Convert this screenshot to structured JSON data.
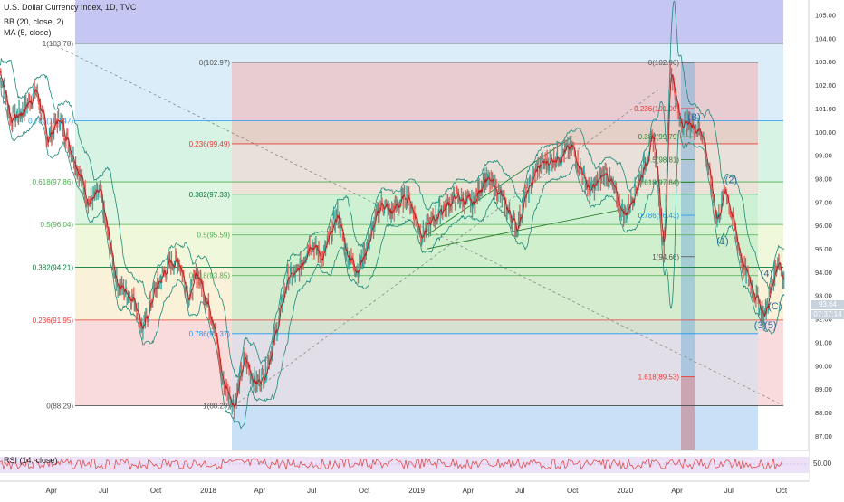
{
  "header": {
    "title": "U.S. Dollar Currency Index, 1D, TVC",
    "indicator_bb": "BB (20, close, 2)",
    "indicator_ma": "MA (5, close)"
  },
  "rsi_panel": {
    "label": "RSI (14, close)",
    "tick": "50.00"
  },
  "price_tags": {
    "last": "93.64",
    "timer": "07:37:14"
  },
  "colors": {
    "price_up": "#26a69a",
    "price_down": "#ef5350",
    "bb": "#1e8a7a",
    "ma": "#b71c1c",
    "rsi": "#e53935",
    "fib_red": "#e53935",
    "fib_blue": "#2196f3",
    "fib_green": "#4caf50",
    "fib_line": "#555555"
  },
  "chart_data": {
    "type": "line",
    "title": "U.S. Dollar Currency Index, 1D, TVC",
    "y_axis": {
      "range": [
        87.0,
        105.0
      ],
      "ticks": [
        "105.00",
        "104.00",
        "103.00",
        "102.00",
        "101.00",
        "100.00",
        "99.00",
        "98.00",
        "97.00",
        "96.00",
        "95.00",
        "94.00",
        "93.00",
        "92.00",
        "91.00",
        "90.00",
        "89.00",
        "88.00",
        "87.00"
      ]
    },
    "x_axis": {
      "ticks": [
        "Apr",
        "Jul",
        "Oct",
        "2018",
        "Apr",
        "Jul",
        "Oct",
        "2019",
        "Apr",
        "Jul",
        "Oct",
        "2020",
        "Apr",
        "Jul",
        "Oct"
      ]
    },
    "price_series": {
      "name": "U.S. Dollar Currency Index",
      "anchors": [
        [
          "2017-01-01",
          102.6
        ],
        [
          "2017-01-20",
          100.5
        ],
        [
          "2017-02-10",
          100.9
        ],
        [
          "2017-03-05",
          101.8
        ],
        [
          "2017-03-25",
          99.7
        ],
        [
          "2017-04-15",
          100.6
        ],
        [
          "2017-05-10",
          98.9
        ],
        [
          "2017-06-05",
          97.0
        ],
        [
          "2017-06-25",
          97.4
        ],
        [
          "2017-07-25",
          93.5
        ],
        [
          "2017-08-25",
          92.8
        ],
        [
          "2017-09-08",
          91.5
        ],
        [
          "2017-09-28",
          93.2
        ],
        [
          "2017-10-25",
          94.4
        ],
        [
          "2017-11-10",
          94.5
        ],
        [
          "2017-11-28",
          92.9
        ],
        [
          "2017-12-12",
          94.0
        ],
        [
          "2018-01-10",
          91.9
        ],
        [
          "2018-01-25",
          89.4
        ],
        [
          "2018-02-15",
          88.3
        ],
        [
          "2018-03-05",
          90.3
        ],
        [
          "2018-03-25",
          89.2
        ],
        [
          "2018-04-10",
          89.7
        ],
        [
          "2018-04-28",
          91.3
        ],
        [
          "2018-05-20",
          93.8
        ],
        [
          "2018-06-05",
          93.9
        ],
        [
          "2018-06-28",
          95.3
        ],
        [
          "2018-07-20",
          94.6
        ],
        [
          "2018-08-15",
          96.5
        ],
        [
          "2018-08-31",
          94.8
        ],
        [
          "2018-09-20",
          94.1
        ],
        [
          "2018-10-10",
          95.4
        ],
        [
          "2018-10-31",
          97.0
        ],
        [
          "2018-11-15",
          96.5
        ],
        [
          "2018-12-15",
          97.3
        ],
        [
          "2019-01-10",
          95.6
        ],
        [
          "2019-02-10",
          96.6
        ],
        [
          "2019-03-10",
          97.2
        ],
        [
          "2019-04-10",
          96.9
        ],
        [
          "2019-04-28",
          98.0
        ],
        [
          "2019-05-20",
          97.6
        ],
        [
          "2019-06-25",
          95.9
        ],
        [
          "2019-07-10",
          97.2
        ],
        [
          "2019-08-01",
          98.5
        ],
        [
          "2019-08-30",
          98.9
        ],
        [
          "2019-10-01",
          99.3
        ],
        [
          "2019-10-31",
          97.4
        ],
        [
          "2019-11-28",
          98.3
        ],
        [
          "2019-12-31",
          96.4
        ],
        [
          "2020-01-25",
          97.9
        ],
        [
          "2020-02-20",
          99.8
        ],
        [
          "2020-03-09",
          95.0
        ],
        [
          "2020-03-20",
          102.9
        ],
        [
          "2020-04-05",
          100.5
        ],
        [
          "2020-04-25",
          100.3
        ],
        [
          "2020-05-15",
          100.0
        ],
        [
          "2020-06-10",
          96.2
        ],
        [
          "2020-06-25",
          97.6
        ],
        [
          "2020-07-25",
          94.3
        ],
        [
          "2020-08-10",
          93.4
        ],
        [
          "2020-09-01",
          92.1
        ],
        [
          "2020-09-25",
          94.6
        ],
        [
          "2020-10-06",
          93.6
        ]
      ]
    },
    "fibonacci_left": [
      {
        "label": "1(103.78)",
        "value": 103.78
      },
      {
        "label": "0.786(100.47)",
        "value": 100.47
      },
      {
        "label": "0.618(97.86)",
        "value": 97.86
      },
      {
        "label": "0.5(96.04)",
        "value": 96.04
      },
      {
        "label": "0.382(94.21)",
        "value": 94.21
      },
      {
        "label": "0.236(91.95)",
        "value": 91.95
      },
      {
        "label": "0(88.29)",
        "value": 88.29
      }
    ],
    "fibonacci_mid": [
      {
        "label": "0(102.97)",
        "value": 102.97
      },
      {
        "label": "0.236(99.49)",
        "value": 99.49
      },
      {
        "label": "0.382(97.33)",
        "value": 97.33
      },
      {
        "label": "0.5(95.59)",
        "value": 95.59
      },
      {
        "label": "0.618(93.85)",
        "value": 93.85
      },
      {
        "label": "0.786(91.37)",
        "value": 91.37
      },
      {
        "label": "1(88.29)",
        "value": 88.29
      }
    ],
    "fibonacci_right": [
      {
        "label": "0(102.96)",
        "value": 102.96
      },
      {
        "label": "0.236(101.00)",
        "value": 101.0
      },
      {
        "label": "0.382(99.79)",
        "value": 99.79
      },
      {
        "label": "0.5(98.81)",
        "value": 98.81
      },
      {
        "label": "0.618(97.84)",
        "value": 97.84
      },
      {
        "label": "0.786(96.43)",
        "value": 96.43
      },
      {
        "label": "1(94.66)",
        "value": 94.66
      },
      {
        "label": "1.618(89.53)",
        "value": 89.53
      }
    ],
    "wave_labels": [
      {
        "label": "(B)",
        "date": "2020-05-01",
        "value": 100.5
      },
      {
        "label": "(2)",
        "date": "2020-07-05",
        "value": 97.8
      },
      {
        "label": "(1)",
        "date": "2020-06-20",
        "value": 95.2
      },
      {
        "label": "(4)",
        "date": "2020-09-05",
        "value": 93.8
      },
      {
        "label": "(3)",
        "date": "2020-08-25",
        "value": 91.6
      },
      {
        "label": "(5)",
        "date": "2020-09-12",
        "value": 91.6
      },
      {
        "label": "(C)",
        "date": "2020-09-20",
        "value": 92.4
      }
    ],
    "trend_channel": {
      "upper": [
        [
          "2019-01-20",
          95.6
        ],
        [
          "2019-10-01",
          99.8
        ]
      ],
      "lower": [
        [
          "2019-01-20",
          95.0
        ],
        [
          "2020-01-01",
          96.7
        ]
      ]
    },
    "dashed_line_down": [
      [
        "2017-04-01",
        103.78
      ],
      [
        "2020-10-05",
        88.29
      ]
    ],
    "dashed_line_up": [
      [
        "2018-02-15",
        88.29
      ],
      [
        "2020-02-28",
        101.8
      ]
    ],
    "rsi": {
      "level": 50.0
    }
  }
}
